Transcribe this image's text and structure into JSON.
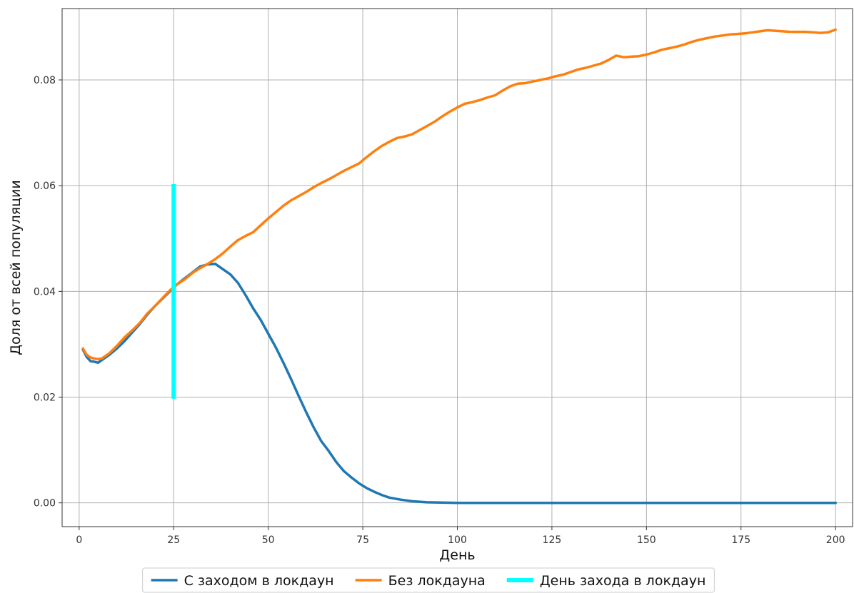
{
  "chart_data": {
    "type": "line",
    "xlabel": "День",
    "ylabel": "Доля от всей популяции",
    "xlim": [
      -4.5,
      204.5
    ],
    "ylim": [
      -0.0045,
      0.0935
    ],
    "x_ticks": [
      0,
      25,
      50,
      75,
      100,
      125,
      150,
      175,
      200
    ],
    "x_tick_labels": [
      "0",
      "25",
      "50",
      "75",
      "100",
      "125",
      "150",
      "175",
      "200"
    ],
    "y_ticks": [
      0.0,
      0.02,
      0.04,
      0.06,
      0.08
    ],
    "y_tick_labels": [
      "0.00",
      "0.02",
      "0.04",
      "0.06",
      "0.08"
    ],
    "grid": true,
    "legend_position": "bottom-center",
    "series": [
      {
        "name": "С заходом в локдаун",
        "color": "#1f77b4",
        "points": [
          [
            1,
            0.029
          ],
          [
            2,
            0.0276
          ],
          [
            3,
            0.0268
          ],
          [
            4,
            0.0267
          ],
          [
            5,
            0.0265
          ],
          [
            6,
            0.027
          ],
          [
            8,
            0.028
          ],
          [
            10,
            0.0292
          ],
          [
            12,
            0.0306
          ],
          [
            14,
            0.0322
          ],
          [
            16,
            0.0338
          ],
          [
            18,
            0.0356
          ],
          [
            20,
            0.0372
          ],
          [
            22,
            0.0386
          ],
          [
            24,
            0.04
          ],
          [
            26,
            0.0414
          ],
          [
            28,
            0.0425
          ],
          [
            30,
            0.0436
          ],
          [
            32,
            0.0447
          ],
          [
            34,
            0.0451
          ],
          [
            36,
            0.0452
          ],
          [
            38,
            0.0442
          ],
          [
            40,
            0.0432
          ],
          [
            42,
            0.0416
          ],
          [
            44,
            0.0393
          ],
          [
            46,
            0.0368
          ],
          [
            48,
            0.0346
          ],
          [
            50,
            0.032
          ],
          [
            52,
            0.0294
          ],
          [
            54,
            0.0265
          ],
          [
            56,
            0.0235
          ],
          [
            58,
            0.0203
          ],
          [
            60,
            0.0172
          ],
          [
            62,
            0.0143
          ],
          [
            64,
            0.0117
          ],
          [
            66,
            0.0098
          ],
          [
            68,
            0.0077
          ],
          [
            70,
            0.006
          ],
          [
            72,
            0.0048
          ],
          [
            74,
            0.0037
          ],
          [
            76,
            0.0028
          ],
          [
            78,
            0.0021
          ],
          [
            80,
            0.0015
          ],
          [
            82,
            0.001
          ],
          [
            85,
            0.0006
          ],
          [
            88,
            0.0003
          ],
          [
            92,
            0.0001
          ],
          [
            100,
            0.0
          ],
          [
            125,
            0.0
          ],
          [
            150,
            0.0
          ],
          [
            175,
            0.0
          ],
          [
            200,
            0.0
          ]
        ]
      },
      {
        "name": "Без локдауна",
        "color": "#ff7f0e",
        "points": [
          [
            1,
            0.0292
          ],
          [
            2,
            0.028
          ],
          [
            3,
            0.0275
          ],
          [
            4,
            0.0273
          ],
          [
            5,
            0.0272
          ],
          [
            6,
            0.0273
          ],
          [
            8,
            0.0283
          ],
          [
            10,
            0.0297
          ],
          [
            12,
            0.0313
          ],
          [
            14,
            0.0326
          ],
          [
            16,
            0.034
          ],
          [
            18,
            0.0358
          ],
          [
            20,
            0.0372
          ],
          [
            22,
            0.0387
          ],
          [
            24,
            0.0402
          ],
          [
            26,
            0.0414
          ],
          [
            28,
            0.0423
          ],
          [
            30,
            0.0435
          ],
          [
            32,
            0.0444
          ],
          [
            34,
            0.0452
          ],
          [
            36,
            0.0461
          ],
          [
            38,
            0.0472
          ],
          [
            40,
            0.0485
          ],
          [
            42,
            0.0497
          ],
          [
            44,
            0.0505
          ],
          [
            46,
            0.0512
          ],
          [
            48,
            0.0525
          ],
          [
            50,
            0.0538
          ],
          [
            52,
            0.055
          ],
          [
            54,
            0.0562
          ],
          [
            56,
            0.0572
          ],
          [
            58,
            0.058
          ],
          [
            60,
            0.0588
          ],
          [
            62,
            0.0597
          ],
          [
            64,
            0.0605
          ],
          [
            66,
            0.0612
          ],
          [
            68,
            0.062
          ],
          [
            70,
            0.0628
          ],
          [
            72,
            0.0635
          ],
          [
            74,
            0.0642
          ],
          [
            76,
            0.0654
          ],
          [
            78,
            0.0665
          ],
          [
            80,
            0.0675
          ],
          [
            82,
            0.0683
          ],
          [
            84,
            0.069
          ],
          [
            86,
            0.0693
          ],
          [
            88,
            0.0697
          ],
          [
            90,
            0.0705
          ],
          [
            92,
            0.0713
          ],
          [
            94,
            0.0721
          ],
          [
            96,
            0.0731
          ],
          [
            98,
            0.074
          ],
          [
            100,
            0.0748
          ],
          [
            102,
            0.0755
          ],
          [
            104,
            0.0758
          ],
          [
            106,
            0.0762
          ],
          [
            108,
            0.0767
          ],
          [
            110,
            0.0771
          ],
          [
            112,
            0.078
          ],
          [
            114,
            0.0788
          ],
          [
            116,
            0.0793
          ],
          [
            118,
            0.0794
          ],
          [
            120,
            0.0797
          ],
          [
            122,
            0.08
          ],
          [
            124,
            0.0803
          ],
          [
            126,
            0.0807
          ],
          [
            128,
            0.081
          ],
          [
            130,
            0.0815
          ],
          [
            132,
            0.082
          ],
          [
            134,
            0.0823
          ],
          [
            136,
            0.0827
          ],
          [
            138,
            0.0831
          ],
          [
            140,
            0.0838
          ],
          [
            142,
            0.0846
          ],
          [
            144,
            0.0843
          ],
          [
            146,
            0.0844
          ],
          [
            148,
            0.0845
          ],
          [
            150,
            0.0848
          ],
          [
            152,
            0.0852
          ],
          [
            154,
            0.0857
          ],
          [
            156,
            0.086
          ],
          [
            158,
            0.0863
          ],
          [
            160,
            0.0867
          ],
          [
            162,
            0.0872
          ],
          [
            164,
            0.0876
          ],
          [
            166,
            0.0879
          ],
          [
            168,
            0.0882
          ],
          [
            170,
            0.0884
          ],
          [
            172,
            0.0886
          ],
          [
            174,
            0.0887
          ],
          [
            176,
            0.0888
          ],
          [
            178,
            0.089
          ],
          [
            180,
            0.0892
          ],
          [
            182,
            0.0894
          ],
          [
            184,
            0.0893
          ],
          [
            186,
            0.0892
          ],
          [
            188,
            0.0891
          ],
          [
            190,
            0.0891
          ],
          [
            192,
            0.0891
          ],
          [
            194,
            0.089
          ],
          [
            196,
            0.0889
          ],
          [
            198,
            0.089
          ],
          [
            200,
            0.0895
          ]
        ]
      },
      {
        "name": "День захода в локдаун",
        "color": "#00ffff",
        "kind": "vertical-segment",
        "x": 25,
        "y_range": [
          0.0197,
          0.0603
        ]
      }
    ]
  }
}
